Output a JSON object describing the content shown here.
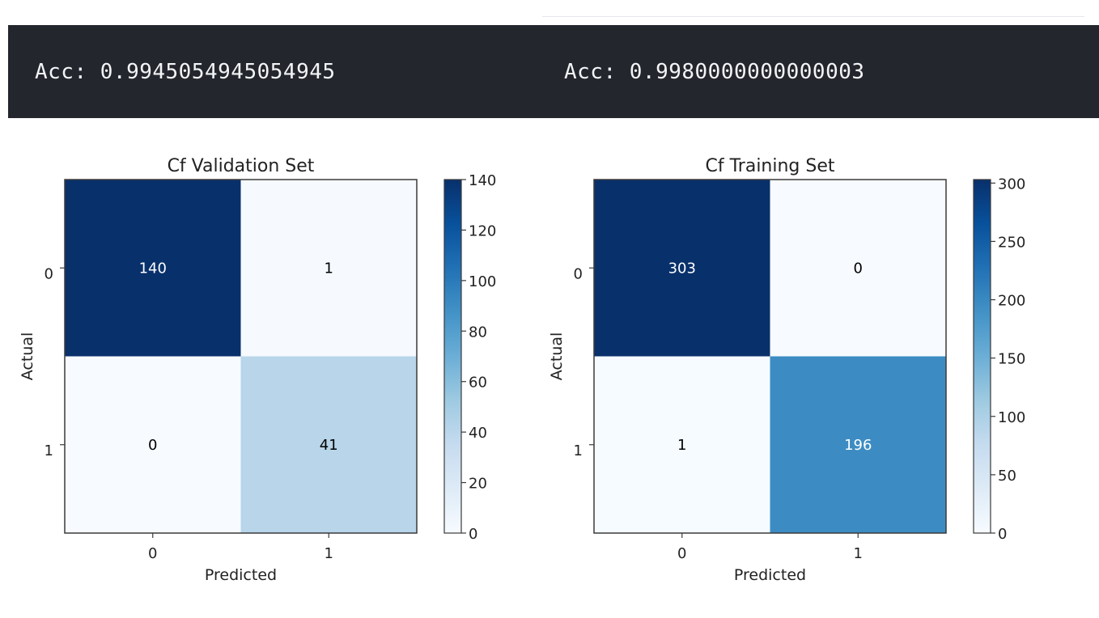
{
  "output": {
    "acc_left": "Acc: 0.9945054945054945",
    "acc_right": "Acc: 0.9980000000000003"
  },
  "chart_data": [
    {
      "type": "heatmap",
      "title": "Cf Validation Set",
      "xlabel": "Predicted",
      "ylabel": "Actual",
      "x_categories": [
        "0",
        "1"
      ],
      "y_categories": [
        "0",
        "1"
      ],
      "matrix": [
        [
          140,
          1
        ],
        [
          0,
          41
        ]
      ],
      "colorbar": {
        "min": 0,
        "max": 140,
        "ticks": [
          0,
          20,
          40,
          60,
          80,
          100,
          120,
          140
        ],
        "colormap": "Blues"
      }
    },
    {
      "type": "heatmap",
      "title": "Cf Training Set",
      "xlabel": "Predicted",
      "ylabel": "Actual",
      "x_categories": [
        "0",
        "1"
      ],
      "y_categories": [
        "0",
        "1"
      ],
      "matrix": [
        [
          303,
          0
        ],
        [
          1,
          196
        ]
      ],
      "colorbar": {
        "min": 0,
        "max": 303,
        "ticks": [
          0,
          50,
          100,
          150,
          200,
          250,
          300
        ],
        "colormap": "Blues"
      }
    }
  ]
}
